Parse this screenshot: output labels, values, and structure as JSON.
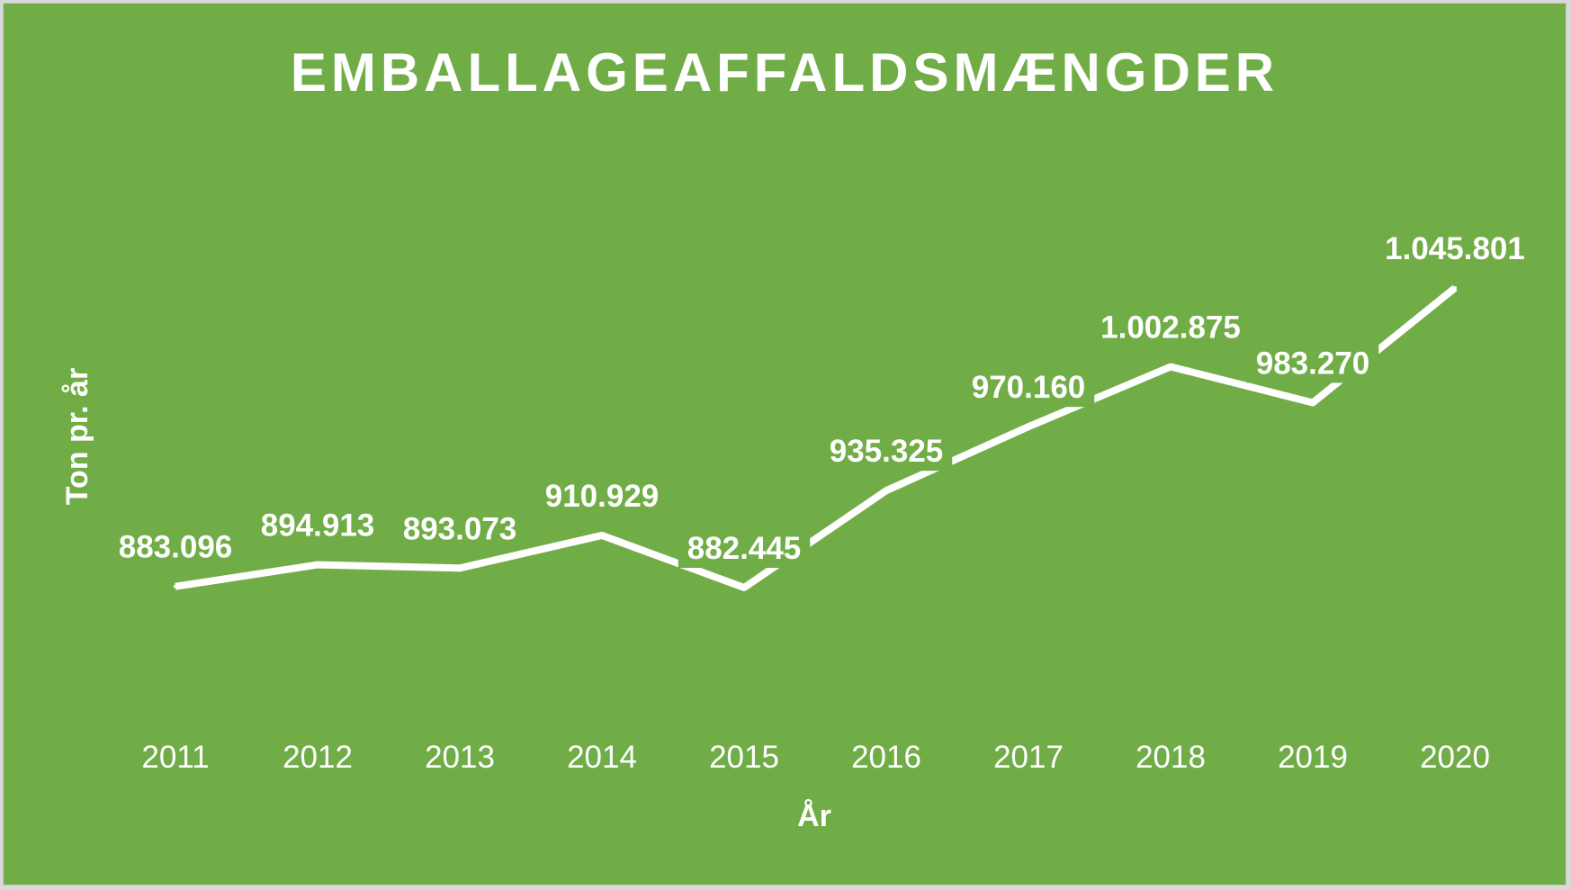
{
  "chart_data": {
    "type": "line",
    "title": "EMBALLAGEAFFALDSMÆNGDER",
    "xlabel": "År",
    "ylabel": "Ton pr. år",
    "categories": [
      "2011",
      "2012",
      "2013",
      "2014",
      "2015",
      "2016",
      "2017",
      "2018",
      "2019",
      "2020"
    ],
    "values": [
      883096,
      894913,
      893073,
      910929,
      882445,
      935325,
      970160,
      1002875,
      983270,
      1045801
    ],
    "value_labels": [
      "883.096",
      "894.913",
      "893.073",
      "910.929",
      "882.445",
      "935.325",
      "970.160",
      "1.002.875",
      "983.270",
      "1.045.801"
    ],
    "drop_lines": true,
    "grid": false,
    "legend": "none",
    "colors": {
      "background": "#70ad47",
      "text": "#ffffff",
      "line": "#ffffff"
    }
  }
}
